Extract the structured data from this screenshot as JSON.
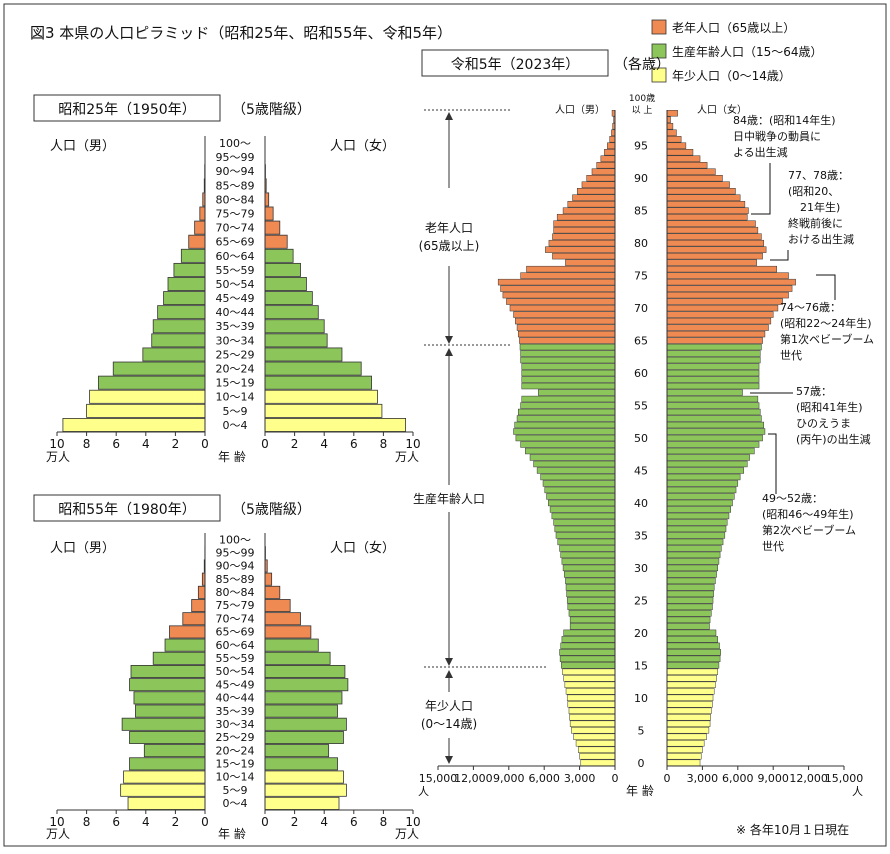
{
  "title": "図3 本県の人口ピラミッド（昭和25年、昭和55年、令和5年）",
  "note": "※ 各年10月１日現在",
  "legend": [
    {
      "label": "老年人口（65歳以上）",
      "color": "#f08a53"
    },
    {
      "label": "生産年齢人口（15～64歳）",
      "color": "#8cc65a"
    },
    {
      "label": "年少人口（0～14歳）",
      "color": "#ffff8c"
    }
  ],
  "colors": {
    "elderly": "#f08a53",
    "working": "#8cc65a",
    "young": "#ffff8c"
  },
  "labels": {
    "male": "人口（男）",
    "female": "人口（女）",
    "age_axis": "年 齢",
    "unit_man": "万人",
    "unit_person": "人",
    "age_top_1": "100歳",
    "age_top_2": "以 上"
  },
  "chart_data": [
    {
      "type": "bar",
      "subtype": "population-pyramid",
      "title": "昭和25年（1950年）",
      "subtitle": "（5歳階級）",
      "unit": "万人",
      "xlim": [
        0,
        10
      ],
      "x_ticks": [
        10,
        8,
        6,
        4,
        2,
        0
      ],
      "categories": [
        "0～4",
        "5～9",
        "10～14",
        "15～19",
        "20～24",
        "25～29",
        "30～34",
        "35～39",
        "40～44",
        "45～49",
        "50～54",
        "55～59",
        "60～64",
        "65～69",
        "70～74",
        "75～79",
        "80～84",
        "85～89",
        "90～94",
        "95～99",
        "100～"
      ],
      "series": [
        {
          "name": "人口（男）",
          "values": [
            9.6,
            8.0,
            7.8,
            7.2,
            6.2,
            4.2,
            3.6,
            3.5,
            3.2,
            2.8,
            2.5,
            2.1,
            1.6,
            1.1,
            0.7,
            0.35,
            0.15,
            0.05,
            0.02,
            0.0,
            0.0
          ]
        },
        {
          "name": "人口（女）",
          "values": [
            9.5,
            7.9,
            7.6,
            7.2,
            6.5,
            5.2,
            4.2,
            4.0,
            3.6,
            3.2,
            2.8,
            2.4,
            1.9,
            1.5,
            1.0,
            0.55,
            0.25,
            0.08,
            0.03,
            0.0,
            0.0
          ]
        }
      ]
    },
    {
      "type": "bar",
      "subtype": "population-pyramid",
      "title": "昭和55年（1980年）",
      "subtitle": "（5歳階級）",
      "unit": "万人",
      "xlim": [
        0,
        10
      ],
      "x_ticks": [
        10,
        8,
        6,
        4,
        2,
        0
      ],
      "categories": [
        "0～4",
        "5～9",
        "10～14",
        "15～19",
        "20～24",
        "25～29",
        "30～34",
        "35～39",
        "40～44",
        "45～49",
        "50～54",
        "55～59",
        "60～64",
        "65～69",
        "70～74",
        "75～79",
        "80～84",
        "85～89",
        "90～94",
        "95～99",
        "100～"
      ],
      "series": [
        {
          "name": "人口（男）",
          "values": [
            5.2,
            5.7,
            5.5,
            5.1,
            4.1,
            5.1,
            5.6,
            4.7,
            4.8,
            5.1,
            5.0,
            3.5,
            2.7,
            2.4,
            1.5,
            0.9,
            0.45,
            0.18,
            0.05,
            0.01,
            0.0
          ]
        },
        {
          "name": "人口（女）",
          "values": [
            5.0,
            5.5,
            5.3,
            4.9,
            4.3,
            5.3,
            5.5,
            4.9,
            5.2,
            5.6,
            5.4,
            4.4,
            3.6,
            3.1,
            2.4,
            1.7,
            1.0,
            0.45,
            0.15,
            0.03,
            0.0
          ]
        }
      ]
    },
    {
      "type": "bar",
      "subtype": "population-pyramid",
      "title": "令和5年（2023年）",
      "subtitle": "（各歳）",
      "unit": "人",
      "xlim": [
        0,
        15000
      ],
      "x_ticks_male": [
        15000,
        12000,
        9000,
        6000,
        3000,
        0
      ],
      "x_ticks_female": [
        0,
        3000,
        6000,
        9000,
        12000,
        15000
      ],
      "age_ticks": [
        0,
        5,
        10,
        15,
        20,
        25,
        30,
        35,
        40,
        45,
        50,
        55,
        60,
        65,
        70,
        75,
        80,
        85,
        90,
        95
      ],
      "categories": [
        "0",
        "1",
        "2",
        "3",
        "4",
        "5",
        "6",
        "7",
        "8",
        "9",
        "10",
        "11",
        "12",
        "13",
        "14",
        "15",
        "16",
        "17",
        "18",
        "19",
        "20",
        "21",
        "22",
        "23",
        "24",
        "25",
        "26",
        "27",
        "28",
        "29",
        "30",
        "31",
        "32",
        "33",
        "34",
        "35",
        "36",
        "37",
        "38",
        "39",
        "40",
        "41",
        "42",
        "43",
        "44",
        "45",
        "46",
        "47",
        "48",
        "49",
        "50",
        "51",
        "52",
        "53",
        "54",
        "55",
        "56",
        "57",
        "58",
        "59",
        "60",
        "61",
        "62",
        "63",
        "64",
        "65",
        "66",
        "67",
        "68",
        "69",
        "70",
        "71",
        "72",
        "73",
        "74",
        "75",
        "76",
        "77",
        "78",
        "79",
        "80",
        "81",
        "82",
        "83",
        "84",
        "85",
        "86",
        "87",
        "88",
        "89",
        "90",
        "91",
        "92",
        "93",
        "94",
        "95",
        "96",
        "97",
        "98",
        "99",
        "100以上"
      ],
      "series": [
        {
          "name": "人口（男）",
          "values": [
            2900,
            3000,
            3100,
            3300,
            3500,
            3700,
            3800,
            3850,
            3900,
            4000,
            4050,
            4150,
            4250,
            4350,
            4450,
            4550,
            4650,
            4700,
            4600,
            4500,
            4350,
            3800,
            3800,
            3900,
            4000,
            4050,
            4100,
            4150,
            4200,
            4300,
            4400,
            4500,
            4600,
            4700,
            4850,
            5000,
            5100,
            5200,
            5350,
            5500,
            5650,
            5800,
            5950,
            6100,
            6300,
            6600,
            6900,
            7200,
            7600,
            8000,
            8400,
            8600,
            8500,
            8300,
            8200,
            8000,
            7900,
            6500,
            7900,
            7900,
            7900,
            7900,
            8000,
            8000,
            8050,
            8100,
            8200,
            8300,
            8450,
            8600,
            8900,
            9200,
            9500,
            9700,
            9900,
            8000,
            7500,
            4200,
            5300,
            5900,
            5600,
            5300,
            5200,
            5200,
            4900,
            4400,
            4000,
            3600,
            3200,
            2800,
            2400,
            1950,
            1550,
            1200,
            900,
            650,
            450,
            300,
            200,
            120,
            250
          ]
        },
        {
          "name": "人口（女）",
          "values": [
            2800,
            2900,
            3000,
            3150,
            3350,
            3550,
            3650,
            3700,
            3750,
            3850,
            3900,
            4000,
            4100,
            4200,
            4300,
            4400,
            4500,
            4550,
            4450,
            4300,
            4150,
            3600,
            3650,
            3750,
            3850,
            3900,
            3950,
            4000,
            4100,
            4200,
            4300,
            4400,
            4500,
            4600,
            4750,
            4900,
            5000,
            5100,
            5250,
            5400,
            5550,
            5700,
            5850,
            6000,
            6200,
            6500,
            6800,
            7000,
            7400,
            7800,
            8100,
            8300,
            8200,
            8000,
            7900,
            7800,
            7700,
            6400,
            7800,
            7800,
            7800,
            7800,
            7900,
            7900,
            8000,
            8100,
            8300,
            8600,
            8800,
            9000,
            9400,
            9800,
            10300,
            10600,
            10900,
            10300,
            9300,
            7600,
            8100,
            8400,
            8200,
            8000,
            7700,
            7500,
            6800,
            6900,
            6600,
            6200,
            5800,
            5300,
            4700,
            4100,
            3400,
            2800,
            2200,
            1600,
            1200,
            800,
            500,
            300,
            900
          ]
        }
      ],
      "annotations": [
        "84歳：（昭和14年生）日中戦争の動員による出生減",
        "77、78歳：（昭和20、21年生）終戦前後における出生減",
        "74～76歳：（昭和22～24年生）第1次ベビーブーム世代",
        "57歳：（昭和41年生）ひのえうま（丙午）の出生減",
        "49～52歳：（昭和46～49年生）第2次ベビーブーム世代"
      ],
      "brackets": [
        "老年人口（65歳以上）",
        "生産年齢人口",
        "年少人口（0～14歳）"
      ]
    }
  ]
}
